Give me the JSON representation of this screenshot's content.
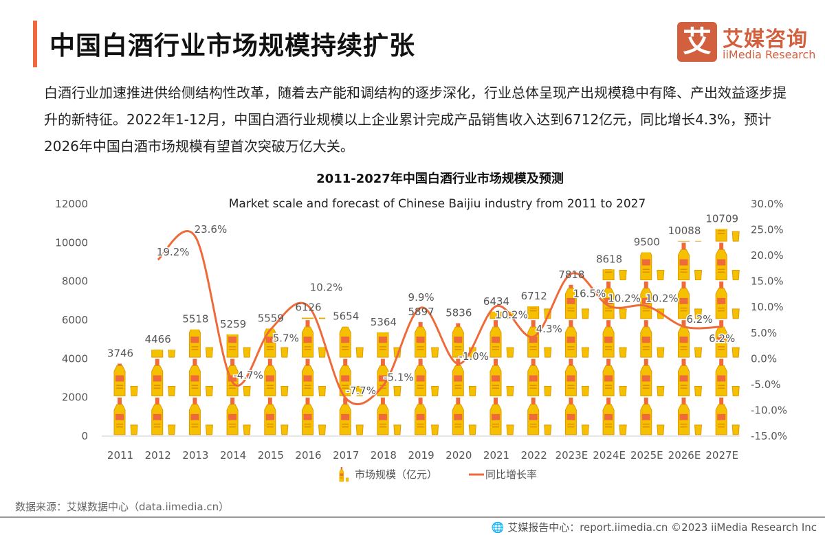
{
  "header": {
    "title": "中国白酒行业市场规模持续扩张",
    "accent_color": "#ec6a3c"
  },
  "logo": {
    "mark": "艾",
    "cn": "艾媒咨询",
    "en": "iiMedia Research",
    "color": "#d2603f"
  },
  "paragraph": "白酒行业加速推进供给侧结构性改革，随着去产能和调结构的逐步深化，行业总体呈现产出规模稳中有降、产出效益逐步提升的新特征。2022年1-12月，中国白酒行业规模以上企业累计完成产品销售收入达到6712亿元，同比增长4.3%，预计2026年中国白酒市场规模有望首次突破万亿大关。",
  "chart_data": {
    "type": "bar+line",
    "title": "2011-2027年中国白酒行业市场规模及预测",
    "subtitle": "Market scale and forecast of Chinese Baijiu industry from 2011 to 2027",
    "categories": [
      "2011",
      "2012",
      "2013",
      "2014",
      "2015",
      "2016",
      "2017",
      "2018",
      "2019",
      "2020",
      "2021",
      "2022",
      "2023E",
      "2024E",
      "2025E",
      "2026E",
      "2027E"
    ],
    "series": [
      {
        "name": "市场规模（亿元）",
        "type": "pictogram-bar",
        "axis": "left",
        "color": "#f5c000",
        "values": [
          3746,
          4466,
          5518,
          5259,
          5559,
          6126,
          5654,
          5364,
          5897,
          5836,
          6434,
          6712,
          7818,
          8618,
          9500,
          10088,
          10709
        ]
      },
      {
        "name": "同比增长率",
        "type": "line",
        "axis": "right",
        "color": "#ef6a3a",
        "values": [
          null,
          19.2,
          23.6,
          -4.7,
          5.7,
          10.2,
          -7.7,
          -5.1,
          9.9,
          -1.0,
          10.2,
          4.3,
          16.5,
          10.2,
          10.2,
          6.2,
          6.2
        ]
      }
    ],
    "left_axis": {
      "ylim": [
        0,
        12000
      ],
      "ticks": [
        "0",
        "2000",
        "4000",
        "6000",
        "8000",
        "10000",
        "12000"
      ]
    },
    "right_axis": {
      "ylim": [
        -15,
        30
      ],
      "ticks": [
        "-15.0%",
        "-10.0%",
        "-5.0%",
        "0.0%",
        "5.0%",
        "10.0%",
        "15.0%",
        "20.0%",
        "25.0%",
        "30.0%"
      ]
    },
    "legend": {
      "position": "bottom",
      "items": [
        "市场规模（亿元）",
        "同比增长率"
      ]
    },
    "grid": false
  },
  "footer": {
    "source": "数据来源：艾媒数据中心（data.iimedia.cn）",
    "right": "艾媒报告中心：report.iimedia.cn  ©2023  iiMedia Research  Inc"
  }
}
